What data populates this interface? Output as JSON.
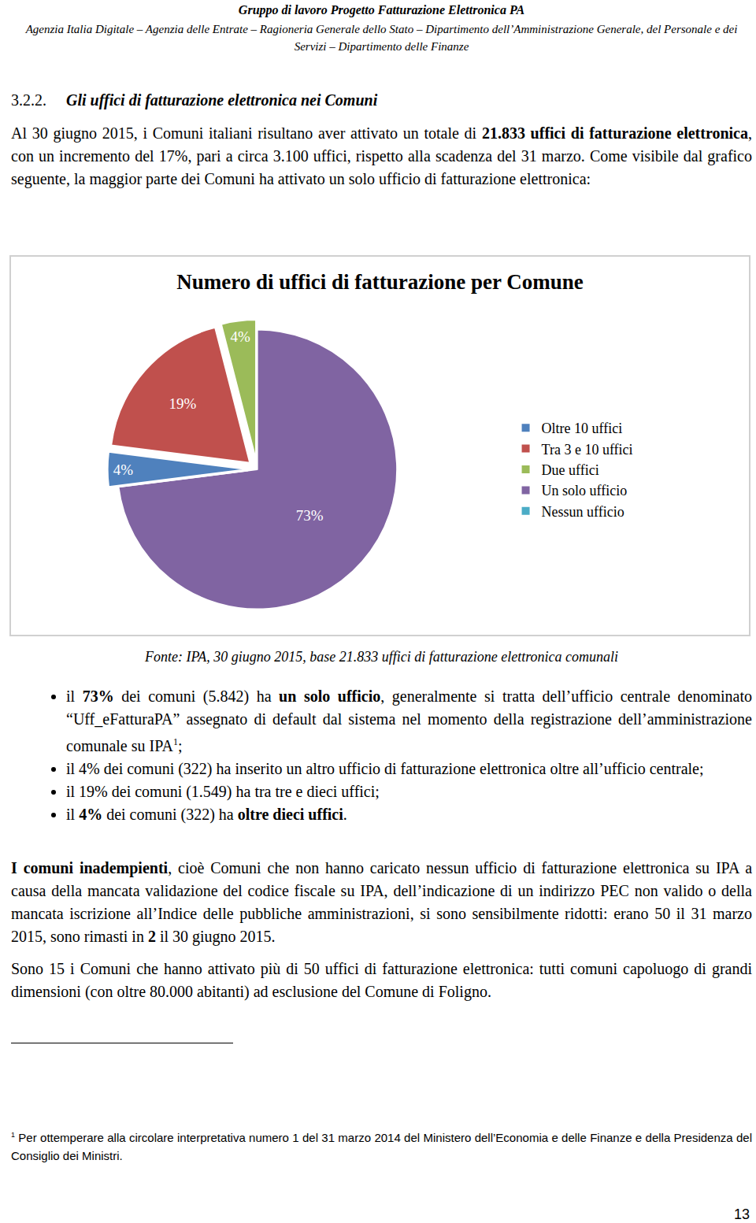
{
  "header": {
    "title": "Gruppo di lavoro Progetto Fatturazione Elettronica PA",
    "members": "Agenzia Italia Digitale – Agenzia delle Entrate – Ragioneria Generale dello Stato – Dipartimento dell’Amministrazione Generale, del Personale e dei Servizi – Dipartimento delle Finanze"
  },
  "section": {
    "number": "3.2.2.",
    "title": "Gli uffici di fatturazione elettronica nei Comuni"
  },
  "intro": [
    "Al 30 giugno 2015, i Comuni italiani risultano aver attivato un totale di ",
    {
      "text": "21.833 uffici di fatturazione elettronica",
      "style": "bold"
    },
    ", con un incremento del 17%, pari a circa 3.100 uffici, rispetto alla scadenza del 31 marzo. Come visibile dal grafico seguente, la maggior parte dei Comuni ha attivato un solo ufficio di fatturazione elettronica:"
  ],
  "chart_data": {
    "type": "pie",
    "title": "Numero di uffici di fatturazione per Comune",
    "categories": [
      "Oltre 10 uffici",
      "Tra 3 e 10 uffici",
      "Due uffici",
      "Un solo ufficio",
      "Nessun ufficio"
    ],
    "values": [
      4,
      19,
      4,
      73,
      0
    ],
    "value_labels": [
      "4%",
      "19%",
      "4%",
      "73%",
      null
    ],
    "colors": [
      "#4f81bd",
      "#c0504d",
      "#9bbb59",
      "#8064a2",
      "#4bacc6"
    ],
    "data_labels": true,
    "legend": "right"
  },
  "source": "Fonte: IPA, 30 giugno 2015, base 21.833 uffici di fatturazione elettronica comunali",
  "bullets": [
    [
      "il ",
      {
        "text": "73%",
        "style": "bold"
      },
      " dei comuni (5.842) ha ",
      {
        "text": "un solo ufficio",
        "style": "bold"
      },
      ", generalmente si tratta dell’ufficio centrale denominato “Uff_eFatturaPA” assegnato di default dal sistema nel momento della registrazione dell’amministrazione comunale su IPA",
      {
        "text": "1",
        "style": "sup"
      },
      ";"
    ],
    [
      "il 4% dei comuni (322) ha inserito un altro ufficio di fatturazione elettronica oltre all’ufficio centrale;"
    ],
    [
      "il 19% dei comuni (1.549) ha tra tre e dieci uffici;"
    ],
    [
      "il ",
      {
        "text": "4%",
        "style": "bold"
      },
      " dei comuni (322) ha ",
      {
        "text": "oltre dieci uffici",
        "style": "bold"
      },
      "."
    ]
  ],
  "paragraphs": [
    [
      {
        "text": "I comuni inadempienti",
        "style": "bold"
      },
      ", cioè Comuni che non hanno caricato nessun ufficio di fatturazione elettronica su IPA a causa della mancata validazione del codice fiscale su IPA, dell’indicazione di un indirizzo PEC non valido o della mancata iscrizione all’Indice delle pubbliche amministrazioni, si sono sensibilmente ridotti: erano 50 il 31 marzo 2015, sono rimasti in ",
      {
        "text": "2",
        "style": "bold"
      },
      " il 30 giugno 2015."
    ],
    [
      "Sono 15 i Comuni che hanno attivato più di 50 uffici di fatturazione elettronica: tutti comuni capoluogo di grandi dimensioni (con oltre 80.000 abitanti) ad esclusione del Comune di Foligno."
    ]
  ],
  "footnote": {
    "mark": "1",
    "text": "Per ottemperare alla circolare interpretativa numero 1 del 31 marzo 2014 del Ministero dell’Economia e delle Finanze e della Presidenza del Consiglio dei Ministri."
  },
  "page_number": "13"
}
